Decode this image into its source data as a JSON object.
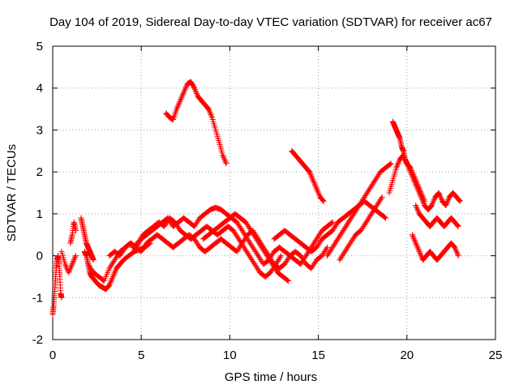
{
  "chart_data": {
    "type": "scatter",
    "title": "Day 104 of 2019, Sidereal Day-to-day VTEC variation (SDTVAR) for receiver ac67",
    "xlabel": "GPS time / hours",
    "ylabel": "SDTVAR / TECUs",
    "xlim": [
      0,
      25
    ],
    "ylim": [
      -2,
      5
    ],
    "xticks": [
      "0",
      "5",
      "10",
      "15",
      "20",
      "25"
    ],
    "yticks": [
      "-2",
      "-1",
      "0",
      "1",
      "2",
      "3",
      "4",
      "5"
    ],
    "grid": true,
    "marker": "+",
    "color": "#ff0000",
    "series": [
      {
        "name": "s1",
        "x": [
          0.0,
          0.05,
          0.1,
          0.15,
          0.2,
          0.25,
          0.3,
          0.35,
          0.4,
          0.45,
          0.5
        ],
        "y": [
          -1.4,
          -1.2,
          -0.9,
          -0.6,
          -0.3,
          -0.1,
          0.0,
          -0.2,
          -0.5,
          -0.9,
          -1.0
        ]
      },
      {
        "name": "s2",
        "x": [
          0.5,
          0.7,
          0.9,
          1.1,
          1.3
        ],
        "y": [
          0.1,
          -0.2,
          -0.4,
          -0.2,
          0.0
        ]
      },
      {
        "name": "s3",
        "x": [
          1.0,
          1.1,
          1.2,
          1.3
        ],
        "y": [
          0.3,
          0.5,
          0.8,
          0.6
        ]
      },
      {
        "name": "s4",
        "x": [
          1.6,
          1.7,
          1.8,
          1.9,
          2.0,
          2.1,
          2.2,
          2.3
        ],
        "y": [
          0.9,
          0.7,
          0.5,
          0.3,
          0.2,
          0.1,
          0.0,
          -0.1
        ]
      },
      {
        "name": "s5",
        "x": [
          1.8,
          1.9,
          2.0,
          2.1,
          2.2,
          2.4,
          2.6,
          2.8,
          3.0,
          3.2,
          3.4,
          3.6,
          3.8,
          4.0,
          4.3,
          4.6,
          4.9,
          5.2,
          5.5
        ],
        "y": [
          0.1,
          0.0,
          -0.2,
          -0.4,
          -0.5,
          -0.6,
          -0.7,
          -0.75,
          -0.8,
          -0.7,
          -0.5,
          -0.3,
          -0.2,
          -0.1,
          0.0,
          0.1,
          0.15,
          0.2,
          0.3
        ]
      },
      {
        "name": "s6",
        "x": [
          2.0,
          2.3,
          2.6,
          2.9,
          3.2,
          3.5,
          3.8,
          4.1,
          4.4,
          4.7,
          5.0,
          5.3,
          5.6,
          5.9,
          6.2,
          6.5,
          6.8,
          7.1,
          7.4,
          7.7,
          8.0,
          8.3,
          8.6,
          8.9,
          9.2,
          9.5,
          9.8,
          10.1,
          10.4,
          10.7,
          11.0,
          11.3,
          11.6,
          11.9,
          12.2,
          12.5,
          12.8,
          13.1,
          13.4,
          13.7,
          14.0,
          14.3,
          14.6,
          14.9,
          15.2,
          15.5,
          15.8
        ],
        "y": [
          -0.2,
          -0.4,
          -0.5,
          -0.6,
          -0.3,
          -0.1,
          0.1,
          0.2,
          0.3,
          0.2,
          0.4,
          0.5,
          0.6,
          0.7,
          0.8,
          0.9,
          0.7,
          0.8,
          0.9,
          0.8,
          0.7,
          0.9,
          1.0,
          1.1,
          1.15,
          1.1,
          1.0,
          0.9,
          0.8,
          0.6,
          0.4,
          0.2,
          0.0,
          -0.2,
          -0.1,
          0.1,
          0.2,
          0.1,
          0.0,
          -0.1,
          -0.2,
          0.0,
          0.2,
          0.4,
          0.6,
          0.7,
          0.8
        ]
      },
      {
        "name": "s7",
        "x": [
          3.2,
          3.5,
          3.8,
          4.1,
          4.4,
          4.7,
          5.0,
          5.3,
          5.6,
          5.9,
          6.2,
          6.5,
          6.8,
          7.1,
          7.4,
          7.7,
          8.0,
          8.3,
          8.6,
          8.9,
          9.2,
          9.5,
          9.8,
          10.1,
          10.4,
          10.7,
          11.0,
          11.3,
          11.6,
          11.9,
          12.2,
          12.5,
          12.8,
          13.1,
          13.4,
          13.7,
          14.0,
          14.3,
          14.6,
          14.9,
          15.2,
          15.5
        ],
        "y": [
          0.0,
          0.1,
          0.0,
          0.2,
          0.3,
          0.2,
          0.1,
          0.3,
          0.4,
          0.5,
          0.4,
          0.3,
          0.2,
          0.3,
          0.4,
          0.5,
          0.4,
          0.2,
          0.1,
          0.2,
          0.3,
          0.4,
          0.3,
          0.2,
          0.1,
          0.3,
          0.5,
          0.6,
          0.4,
          0.2,
          0.0,
          -0.2,
          -0.3,
          -0.2,
          0.0,
          0.1,
          0.0,
          -0.2,
          -0.3,
          -0.1,
          0.0,
          0.2
        ]
      },
      {
        "name": "s8",
        "x": [
          4.5,
          4.8,
          5.1,
          5.4,
          5.7,
          6.0,
          6.3,
          6.6,
          6.9,
          7.2,
          7.5,
          7.8,
          8.1,
          8.4,
          8.7,
          9.0,
          9.3,
          9.6,
          9.9,
          10.2,
          10.5,
          10.8,
          11.1,
          11.4,
          11.7,
          12.0,
          12.3,
          12.6,
          12.9
        ],
        "y": [
          0.2,
          0.3,
          0.5,
          0.6,
          0.7,
          0.8,
          0.7,
          0.9,
          0.8,
          0.6,
          0.5,
          0.4,
          0.5,
          0.6,
          0.7,
          0.6,
          0.5,
          0.6,
          0.7,
          0.6,
          0.4,
          0.2,
          0.0,
          -0.2,
          -0.4,
          -0.5,
          -0.4,
          -0.2,
          0.0
        ]
      },
      {
        "name": "s9",
        "x": [
          8.5,
          8.8,
          9.1,
          9.4,
          9.7,
          10.0,
          10.3,
          10.6,
          10.9,
          11.2,
          11.5,
          11.8,
          12.1,
          12.4,
          12.7,
          13.0,
          13.3
        ],
        "y": [
          0.4,
          0.5,
          0.6,
          0.7,
          0.8,
          0.9,
          1.0,
          0.9,
          0.8,
          0.6,
          0.4,
          0.2,
          0.0,
          -0.2,
          -0.4,
          -0.5,
          -0.6
        ]
      },
      {
        "name": "s10",
        "x": [
          12.5,
          12.8,
          13.1,
          13.4,
          13.7,
          14.0,
          14.3,
          14.6,
          14.9,
          15.2,
          15.5,
          15.8,
          16.1,
          16.4,
          16.7,
          17.0,
          17.3,
          17.6,
          17.9,
          18.2,
          18.5,
          18.8
        ],
        "y": [
          0.4,
          0.5,
          0.6,
          0.5,
          0.4,
          0.3,
          0.2,
          0.1,
          0.2,
          0.4,
          0.5,
          0.6,
          0.8,
          0.9,
          1.0,
          1.1,
          1.2,
          1.3,
          1.2,
          1.1,
          1.0,
          0.9
        ]
      },
      {
        "name": "s11",
        "x": [
          15.5,
          15.8,
          16.1,
          16.4,
          16.7,
          17.0,
          17.3,
          17.6,
          17.9,
          18.2,
          18.5,
          18.8,
          19.1
        ],
        "y": [
          0.0,
          0.2,
          0.4,
          0.6,
          0.8,
          1.0,
          1.2,
          1.4,
          1.6,
          1.8,
          2.0,
          2.1,
          2.2
        ]
      },
      {
        "name": "s12",
        "x": [
          16.2,
          16.5,
          16.8,
          17.1,
          17.4,
          17.7,
          18.0,
          18.3,
          18.6
        ],
        "y": [
          -0.1,
          0.1,
          0.3,
          0.5,
          0.6,
          0.8,
          1.0,
          1.2,
          1.4
        ]
      },
      {
        "name": "s13",
        "x": [
          19.2,
          19.3,
          19.4,
          19.5,
          19.6,
          19.7,
          19.8,
          19.9,
          20.0,
          20.2,
          20.4,
          20.6,
          20.8,
          21.0
        ],
        "y": [
          3.2,
          3.1,
          3.0,
          2.9,
          2.8,
          2.6,
          2.5,
          2.3,
          2.2,
          2.1,
          1.9,
          1.7,
          1.5,
          1.3
        ]
      },
      {
        "name": "s14",
        "x": [
          19.0,
          19.2,
          19.4,
          19.6,
          19.8,
          20.0,
          20.2,
          20.4,
          20.6,
          20.8,
          21.0,
          21.2,
          21.4,
          21.6,
          21.8,
          22.0,
          22.2,
          22.4,
          22.6,
          22.8,
          23.0
        ],
        "y": [
          1.5,
          1.8,
          2.1,
          2.3,
          2.4,
          2.2,
          2.0,
          1.8,
          1.6,
          1.4,
          1.2,
          1.1,
          1.2,
          1.4,
          1.5,
          1.3,
          1.2,
          1.4,
          1.5,
          1.4,
          1.3
        ]
      },
      {
        "name": "s15",
        "x": [
          20.5,
          20.7,
          20.9,
          21.1,
          21.3,
          21.5,
          21.7,
          21.9,
          22.1,
          22.3,
          22.5,
          22.7,
          22.9
        ],
        "y": [
          1.2,
          1.0,
          0.9,
          0.8,
          0.7,
          0.8,
          0.9,
          0.8,
          0.7,
          0.8,
          0.9,
          0.8,
          0.7
        ]
      },
      {
        "name": "s16",
        "x": [
          20.3,
          20.5,
          20.7,
          20.9,
          21.1,
          21.3,
          21.5,
          21.7,
          21.9,
          22.1,
          22.3,
          22.5,
          22.7,
          22.9
        ],
        "y": [
          0.5,
          0.3,
          0.1,
          -0.1,
          0.0,
          0.1,
          0.0,
          -0.1,
          0.0,
          0.1,
          0.2,
          0.3,
          0.2,
          0.0
        ]
      },
      {
        "name": "s17",
        "x": [
          6.4,
          6.6,
          6.8,
          7.0,
          7.2,
          7.4,
          7.6,
          7.8,
          8.0,
          8.2,
          8.4,
          8.6,
          8.8,
          9.0,
          9.2,
          9.4,
          9.6,
          9.8
        ],
        "y": [
          3.4,
          3.3,
          3.25,
          3.5,
          3.7,
          3.9,
          4.1,
          4.15,
          4.0,
          3.8,
          3.7,
          3.6,
          3.5,
          3.3,
          3.0,
          2.7,
          2.4,
          2.2
        ]
      },
      {
        "name": "s18",
        "x": [
          13.5,
          13.7,
          13.9,
          14.1,
          14.3,
          14.5,
          14.7,
          14.9,
          15.1,
          15.3
        ],
        "y": [
          2.5,
          2.4,
          2.3,
          2.2,
          2.1,
          2.0,
          1.8,
          1.6,
          1.4,
          1.3
        ]
      }
    ]
  }
}
